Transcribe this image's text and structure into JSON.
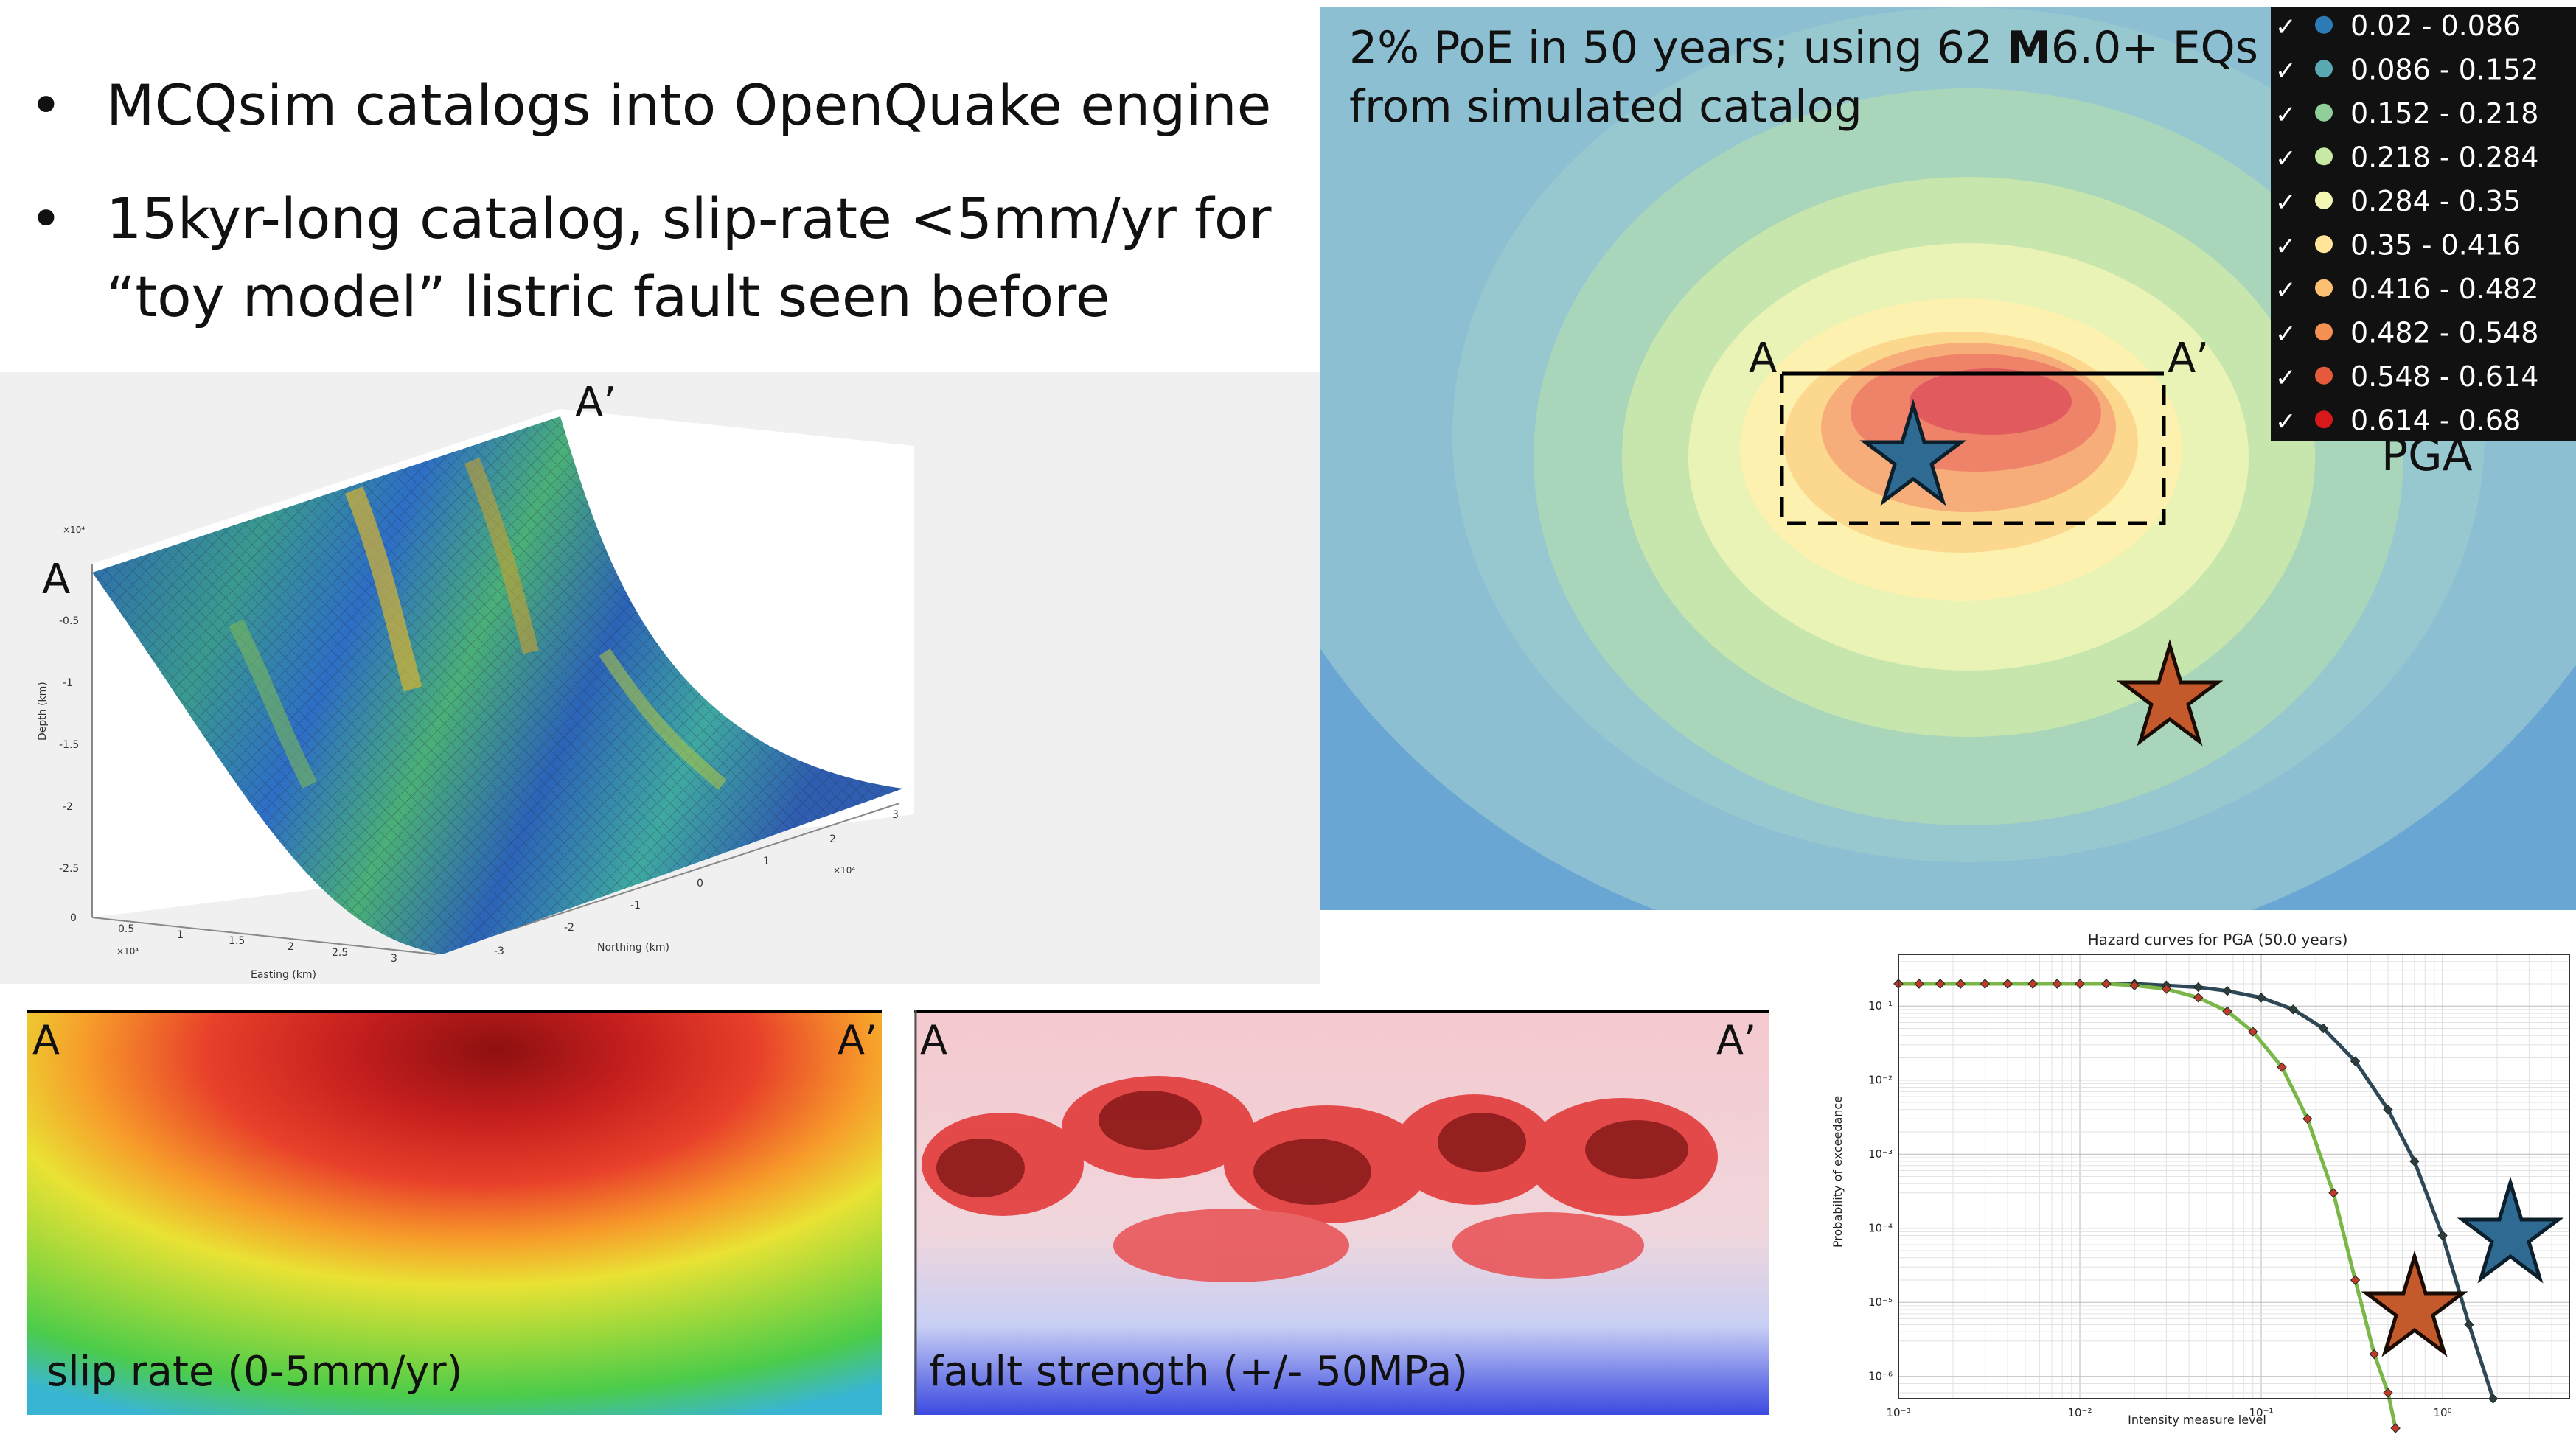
{
  "bullets": [
    "MCQsim catalogs into OpenQuake engine",
    "15kyr-long catalog, slip-rate <5mm/yr for “toy model” listric fault seen before"
  ],
  "fault3d": {
    "label_a": "A",
    "label_a_prime": "A’",
    "exponent_z": "×10⁴",
    "exponent_x": "×10⁴",
    "exponent_y": "×10⁴",
    "depth_label": "Depth (km)",
    "easting_label": "Easting (km)",
    "northing_label": "Northing (km)",
    "depth_ticks": [
      "-0.5",
      "-1",
      "-1.5",
      "-2",
      "-2.5"
    ],
    "easting_ticks": [
      "0",
      "0.5",
      "1",
      "1.5",
      "2",
      "2.5",
      "3"
    ],
    "northing_ticks": [
      "-3",
      "-2",
      "-1",
      "0",
      "1",
      "2",
      "3"
    ]
  },
  "slip_panel": {
    "label_a": "A",
    "label_a_prime": "A’",
    "caption": "slip rate (0-5mm/yr)"
  },
  "strength_panel": {
    "label_a": "A",
    "label_a_prime": "A’",
    "caption": "fault strength (+/- 50MPa)"
  },
  "map": {
    "title_line1_pre": "2% PoE in 50 years; using  62 ",
    "title_line1_bold": "M",
    "title_line1_post": "6.0+ EQs",
    "title_line2": "from simulated catalog",
    "label_a": "A",
    "label_a_prime": "A’",
    "legend_title": "PGA",
    "check": "✓",
    "legend": [
      {
        "range": "0.02 - 0.086",
        "color": "#2c7bb6"
      },
      {
        "range": "0.086 - 0.152",
        "color": "#5aa8b2"
      },
      {
        "range": "0.152 - 0.218",
        "color": "#91cf9a"
      },
      {
        "range": "0.218 - 0.284",
        "color": "#c7e9a4"
      },
      {
        "range": "0.284 - 0.35",
        "color": "#f3f7b4"
      },
      {
        "range": "0.35 - 0.416",
        "color": "#fee59a"
      },
      {
        "range": "0.416 - 0.482",
        "color": "#fdbf71"
      },
      {
        "range": "0.482 - 0.548",
        "color": "#f59053"
      },
      {
        "range": "0.548 - 0.614",
        "color": "#e55a3c"
      },
      {
        "range": "0.614 - 0.68",
        "color": "#d7191c"
      }
    ]
  },
  "chart_data": {
    "type": "line",
    "title": "Hazard curves for PGA (50.0 years)",
    "xlabel": "Intensity measure level",
    "ylabel": "Probability of exceedance",
    "x_scale": "log",
    "y_scale": "log",
    "xlim": [
      0.001,
      5
    ],
    "ylim": [
      5e-07,
      0.5
    ],
    "grid": true,
    "x_ticks": [
      "10⁻³",
      "10⁻²",
      "10⁻¹",
      "10⁰"
    ],
    "y_ticks": [
      "10⁻¹",
      "10⁻²",
      "10⁻³",
      "10⁻⁴",
      "10⁻⁵",
      "10⁻⁶"
    ],
    "series": [
      {
        "color": "#2f4858",
        "marker_color": "#3a6e8f",
        "x": [
          0.001,
          0.0013,
          0.0017,
          0.0022,
          0.003,
          0.004,
          0.0055,
          0.0075,
          0.01,
          0.014,
          0.02,
          0.03,
          0.045,
          0.065,
          0.1,
          0.15,
          0.22,
          0.33,
          0.5,
          0.7,
          1.0,
          1.4,
          1.9
        ],
        "y": [
          0.2,
          0.2,
          0.2,
          0.2,
          0.2,
          0.2,
          0.2,
          0.2,
          0.2,
          0.2,
          0.2,
          0.19,
          0.18,
          0.16,
          0.13,
          0.09,
          0.05,
          0.018,
          0.004,
          0.0008,
          8e-05,
          5e-06,
          5e-07
        ]
      },
      {
        "color": "#7ab648",
        "marker_color": "#c0392b",
        "x": [
          0.001,
          0.0013,
          0.0017,
          0.0022,
          0.003,
          0.004,
          0.0055,
          0.0075,
          0.01,
          0.014,
          0.02,
          0.03,
          0.045,
          0.065,
          0.09,
          0.13,
          0.18,
          0.25,
          0.33,
          0.42,
          0.5,
          0.55
        ],
        "y": [
          0.2,
          0.2,
          0.2,
          0.2,
          0.2,
          0.2,
          0.2,
          0.2,
          0.2,
          0.2,
          0.19,
          0.17,
          0.13,
          0.085,
          0.045,
          0.015,
          0.003,
          0.0003,
          2e-05,
          2e-06,
          6e-07,
          2e-07
        ]
      }
    ]
  }
}
